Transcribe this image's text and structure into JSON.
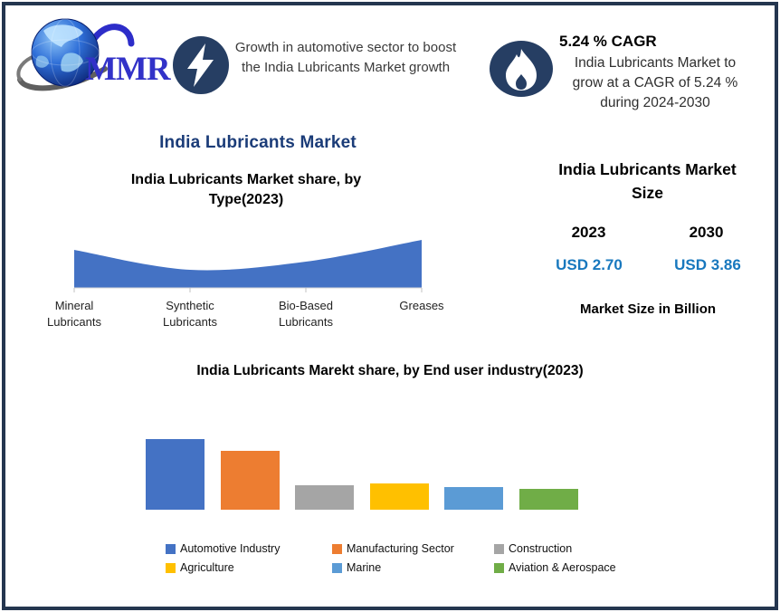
{
  "brand": {
    "logo_text": "MMR"
  },
  "top_banner": {
    "left_highlight": {
      "icon": "lightning-bolt-icon",
      "text": "Growth in automotive sector to boost the India Lubricants Market growth"
    },
    "right_highlight": {
      "icon": "flame-icon",
      "heading": "5.24 % CAGR",
      "text": "India Lubricants Market to grow at a CAGR of 5.24 % during 2024-2030"
    }
  },
  "main_title": "India Lubricants Market",
  "market_size_panel": {
    "title": "India Lubricants Market Size",
    "points": [
      {
        "year": "2023",
        "value": "USD 2.70"
      },
      {
        "year": "2030",
        "value": "USD 3.86"
      }
    ],
    "note": "Market Size in Billion"
  },
  "colors": {
    "border_navy": "#24364F",
    "icon_navy": "#263E63",
    "title_blue": "#1B3C78",
    "value_blue": "#1878BE",
    "chart_blue": "#4472C4"
  },
  "chart_data": [
    {
      "id": "type_share_area",
      "type": "area",
      "title": "India Lubricants Market share, by Type(2023)",
      "categories": [
        "Mineral Lubricants",
        "Synthetic Lubricants",
        "Bio-Based Lubricants",
        "Greases"
      ],
      "values": [
        42,
        20,
        29,
        53
      ],
      "ylim": [
        0,
        66
      ],
      "fill_color": "#4472C4",
      "xlabel": "",
      "ylabel": "",
      "grid": false,
      "legend": "none"
    },
    {
      "id": "end_user_share_bar",
      "type": "bar",
      "title": "India Lubricants Marekt share, by End user industry(2023)",
      "categories": [
        "Automotive Industry",
        "Manufacturing Sector",
        "Construction",
        "Agriculture",
        "Marine",
        "Aviation & Aerospace"
      ],
      "values": [
        40,
        33,
        14,
        15,
        13,
        12
      ],
      "colors": [
        "#4472C4",
        "#ED7D31",
        "#A5A5A5",
        "#FFC000",
        "#5B9BD5",
        "#70AD47"
      ],
      "ylim": [
        0,
        45
      ],
      "xlabel": "",
      "ylabel": "",
      "grid": false,
      "legend_position": "bottom"
    }
  ]
}
